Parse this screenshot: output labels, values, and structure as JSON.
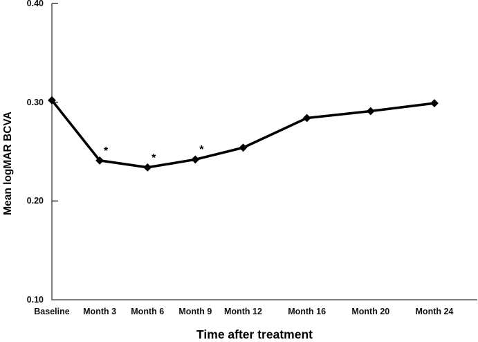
{
  "chart_data": {
    "type": "line",
    "title": "",
    "xlabel": "Time after treatment",
    "ylabel": "Mean logMAR BCVA",
    "categories": [
      "Baseline",
      "Month 3",
      "Month 6",
      "Month 9",
      "Month 12",
      "Month 16",
      "Month 20",
      "Month 24"
    ],
    "x_months": [
      0,
      3,
      6,
      9,
      12,
      16,
      20,
      24
    ],
    "series": [
      {
        "name": "Mean logMAR BCVA",
        "values": [
          0.302,
          0.241,
          0.234,
          0.242,
          0.254,
          0.284,
          0.291,
          0.299
        ],
        "significant": [
          false,
          true,
          true,
          true,
          false,
          false,
          false,
          false
        ]
      }
    ],
    "significance_marker": "*",
    "y_ticks": [
      0.4,
      0.3,
      0.2,
      0.1
    ],
    "y_tick_labels": [
      "0.40",
      "0.30",
      "0.20",
      "0.10"
    ],
    "ylim": [
      0.1,
      0.4
    ],
    "xlim_months": [
      0,
      26.7
    ],
    "grid": false,
    "legend": "none",
    "marker": "diamond",
    "line_color": "#000000",
    "marker_color": "#000000",
    "axis_color": "#6e6e6e",
    "tick_color": "#3a3a3a",
    "text_color": "#111111",
    "background_color": "#ffffff"
  }
}
